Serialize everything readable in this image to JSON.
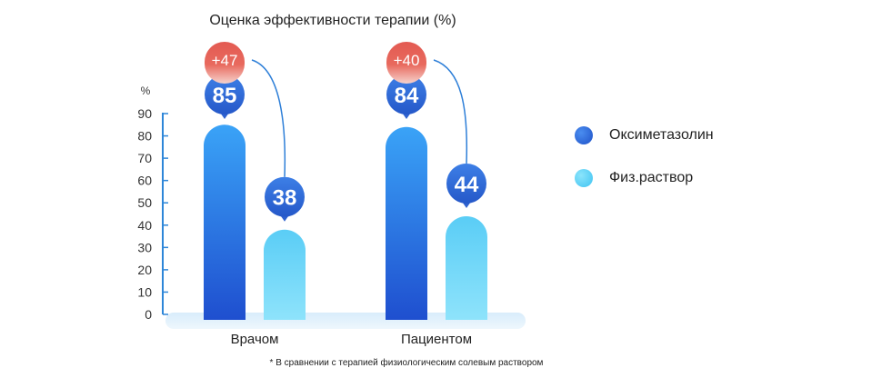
{
  "chart_data": {
    "type": "bar",
    "title": "Оценка эффективности терапии (%)",
    "ylabel": "%",
    "ylim": [
      0,
      90
    ],
    "yticks": [
      0,
      10,
      20,
      30,
      40,
      50,
      60,
      70,
      80,
      90
    ],
    "categories": [
      "Врачом",
      "Пациентом"
    ],
    "series": [
      {
        "name": "Оксиметазолин",
        "values": [
          85,
          84
        ],
        "color": "#2f6fdc"
      },
      {
        "name": "Физ.раствор",
        "values": [
          38,
          44
        ],
        "color": "#5ed0f6"
      }
    ],
    "differences": [
      "+47",
      "+40"
    ],
    "footnote": "* В сравнении с терапией физиологическим солевым раствором",
    "legend_position": "right",
    "grid": false
  }
}
